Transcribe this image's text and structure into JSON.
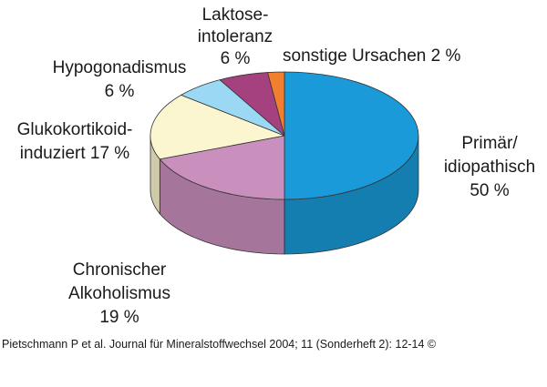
{
  "chart_data": {
    "type": "pie",
    "style": "3d",
    "start": "top",
    "direction": "clockwise",
    "slices": [
      {
        "name": "Primär/ idiopathisch",
        "label_lines": [
          "Primär/",
          "idiopathisch",
          "50 %"
        ],
        "value": 50,
        "color": "#1a9ad8"
      },
      {
        "name": "Chronischer Alkoholismus",
        "label_lines": [
          "Chronischer",
          "Alkoholismus",
          "19 %"
        ],
        "value": 19,
        "color": "#c98fbd"
      },
      {
        "name": "Glukokortikoid-induziert",
        "label_lines": [
          "Glukokortikoid-",
          "induziert 17 %"
        ],
        "value": 17,
        "color": "#fbf6cf"
      },
      {
        "name": "Hypogonadismus",
        "label_lines": [
          "Hypogonadismus",
          "6 %"
        ],
        "value": 6,
        "color": "#9ad8f3"
      },
      {
        "name": "Laktose-intoleranz",
        "label_lines": [
          "Laktose-",
          "intoleranz",
          "6 %"
        ],
        "value": 6,
        "color": "#a5417f"
      },
      {
        "name": "sonstige Ursachen",
        "label_lines": [
          "sonstige Ursachen 2 %"
        ],
        "value": 2,
        "color": "#f17f2f"
      }
    ]
  },
  "citation": "Pietschmann P et al. Journal für Mineralstoffwechsel 2004; 11 (Sonderheft 2): 12-14 ©"
}
